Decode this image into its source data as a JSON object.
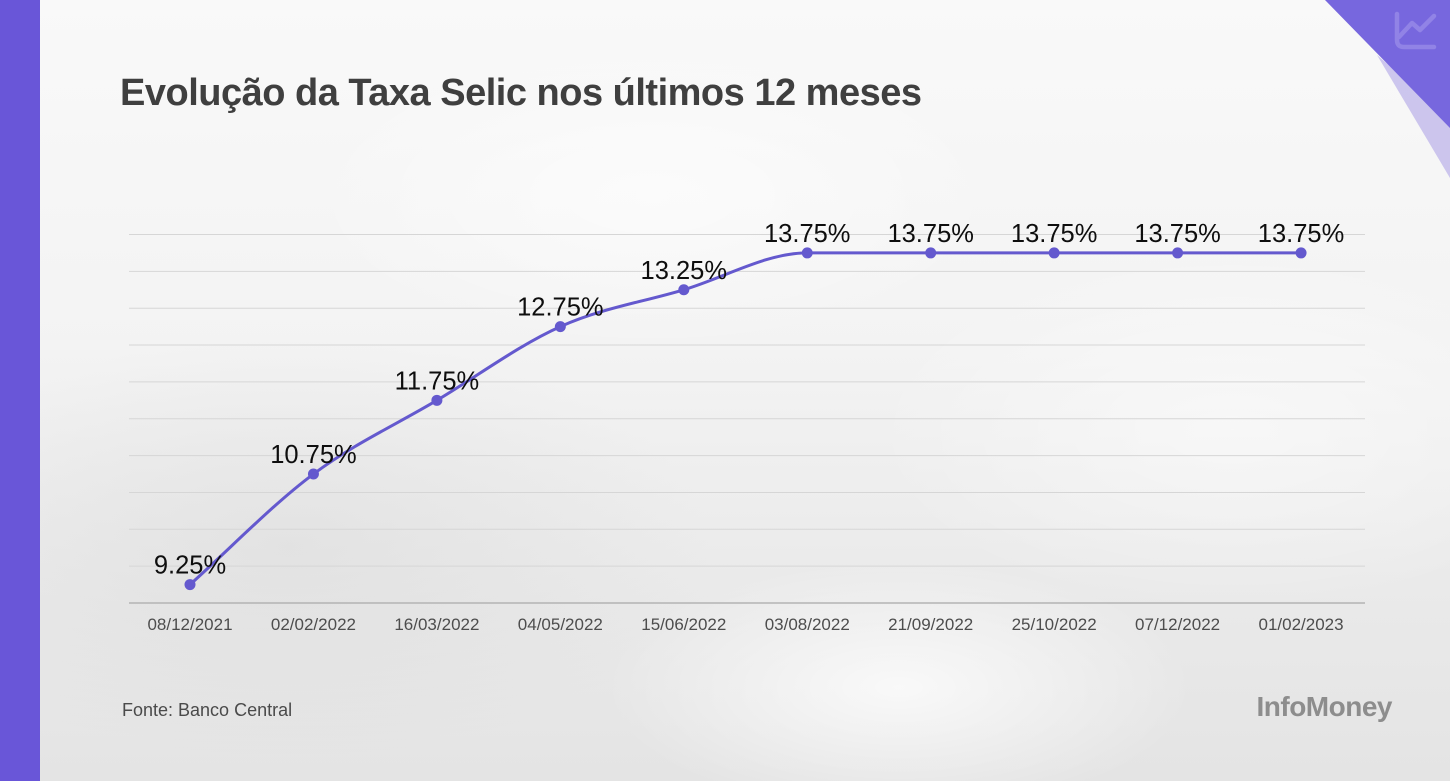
{
  "header": {
    "title": "Evolução da Taxa Selic nos últimos 12 meses"
  },
  "chart_data": {
    "type": "line",
    "title": "Evolução da Taxa Selic nos últimos 12 meses",
    "x": [
      "08/12/2021",
      "02/02/2022",
      "16/03/2022",
      "04/05/2022",
      "15/06/2022",
      "03/08/2022",
      "21/09/2022",
      "25/10/2022",
      "07/12/2022",
      "01/02/2023"
    ],
    "values": [
      9.25,
      10.75,
      11.75,
      12.75,
      13.25,
      13.75,
      13.75,
      13.75,
      13.75,
      13.75
    ],
    "point_labels": [
      "9.25%",
      "10.75%",
      "11.75%",
      "12.75%",
      "13.25%",
      "13.75%",
      "13.75%",
      "13.75%",
      "13.75%",
      "13.75%"
    ],
    "unit": "%",
    "xlabel": "",
    "ylabel": "",
    "ylim": [
      9.0,
      14.0
    ],
    "grid_step": 0.5,
    "grid": "horizontal-only",
    "legend": "none",
    "line_color": "#6459ce",
    "point_color": "#6459ce",
    "label_color": "#0e0e0e",
    "tick_color": "#4d4d4d"
  },
  "frame": {
    "accent_bar_color": "#6956d8",
    "corner_triangle_color": "#7767de",
    "corner_triangle_soft_color": "#a99ce6",
    "corner_icon": "line-chart-icon",
    "corner_icon_color": "#9183e6"
  },
  "footer": {
    "source": "Fonte: Banco Central",
    "logo": "InfoMoney"
  }
}
